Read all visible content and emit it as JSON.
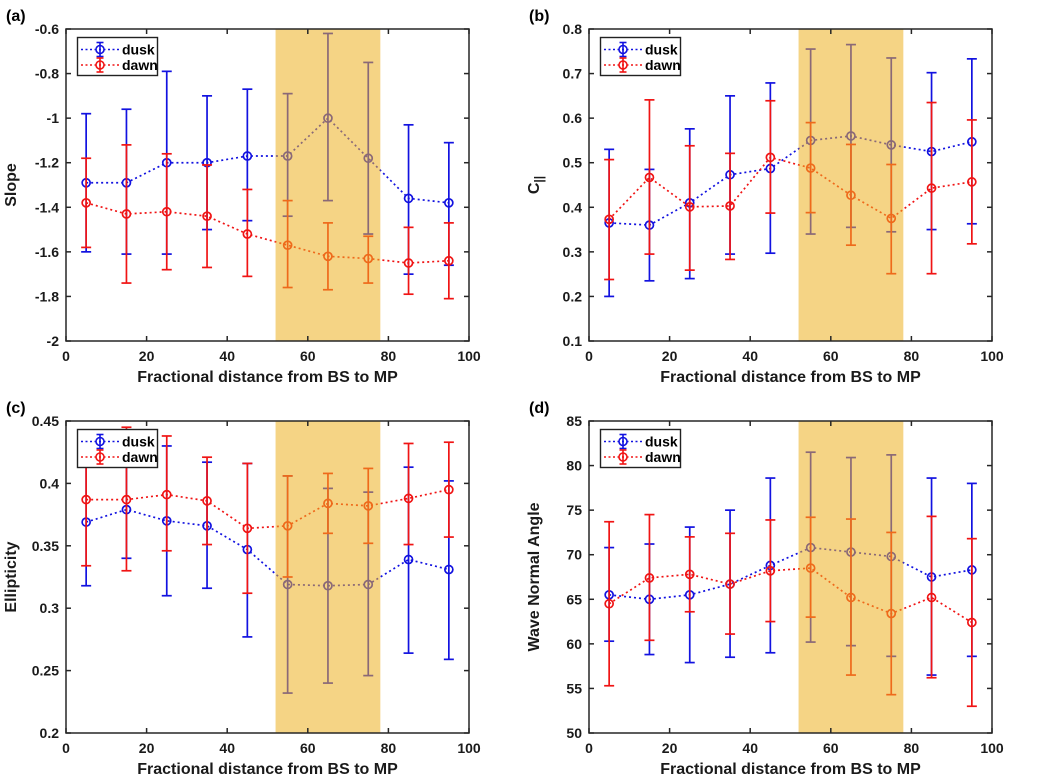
{
  "figure": {
    "background": "#ffffff",
    "xlabel": "Fractional distance from BS to MP",
    "legend_labels": [
      "dusk",
      "dawn"
    ],
    "colors": {
      "dusk": "#1212e0",
      "dawn": "#f01414",
      "band": "#edb120",
      "axis": "#262626",
      "text": "#1a1a1a",
      "legend_border": "#222222"
    }
  },
  "chart_data": [
    {
      "type": "line",
      "panel_label": "(a)",
      "ylabel": "Slope",
      "ylabel_sub": "",
      "xlabel": "Fractional distance from BS to MP",
      "xlim": [
        0,
        100
      ],
      "ylim": [
        -2,
        -0.6
      ],
      "xticks": [
        0,
        20,
        40,
        60,
        80,
        100
      ],
      "xtick_labels": [
        "0",
        "20",
        "40",
        "60",
        "80",
        "100"
      ],
      "yticks": [
        -2,
        -1.8,
        -1.6,
        -1.4,
        -1.2,
        -1,
        -0.8,
        -0.6
      ],
      "ytick_labels": [
        "-2",
        "-1.8",
        "-1.6",
        "-1.4",
        "-1.2",
        "-1",
        "-0.8",
        "-0.6"
      ],
      "x": [
        5,
        15,
        25,
        35,
        45,
        55,
        65,
        75,
        85,
        95
      ],
      "grid": false,
      "legend_position": "top-left",
      "shaded_region": {
        "x0": 52,
        "x1": 78,
        "color": "#edb120",
        "alpha": 0.55
      },
      "series": [
        {
          "name": "dusk",
          "color": "#1212e0",
          "values": [
            -1.29,
            -1.29,
            -1.2,
            -1.2,
            -1.17,
            -1.17,
            -1.0,
            -1.18,
            -1.36,
            -1.38
          ],
          "err_lo": [
            -1.6,
            -1.61,
            -1.61,
            -1.5,
            -1.46,
            -1.44,
            -1.37,
            -1.52,
            -1.7,
            -1.66
          ],
          "err_hi": [
            -0.98,
            -0.96,
            -0.79,
            -0.9,
            -0.87,
            -0.89,
            -0.62,
            -0.75,
            -1.03,
            -1.11
          ]
        },
        {
          "name": "dawn",
          "color": "#f01414",
          "values": [
            -1.38,
            -1.43,
            -1.42,
            -1.44,
            -1.52,
            -1.57,
            -1.62,
            -1.63,
            -1.65,
            -1.64
          ],
          "err_lo": [
            -1.58,
            -1.74,
            -1.68,
            -1.67,
            -1.71,
            -1.76,
            -1.77,
            -1.74,
            -1.79,
            -1.81
          ],
          "err_hi": [
            -1.18,
            -1.12,
            -1.16,
            -1.21,
            -1.32,
            -1.37,
            -1.47,
            -1.53,
            -1.49,
            -1.47
          ]
        }
      ]
    },
    {
      "type": "line",
      "panel_label": "(b)",
      "ylabel": "C",
      "ylabel_sub": "||",
      "xlabel": "Fractional distance from BS to MP",
      "xlim": [
        0,
        100
      ],
      "ylim": [
        0.1,
        0.8
      ],
      "xticks": [
        0,
        20,
        40,
        60,
        80,
        100
      ],
      "xtick_labels": [
        "0",
        "20",
        "40",
        "60",
        "80",
        "100"
      ],
      "yticks": [
        0.1,
        0.2,
        0.3,
        0.4,
        0.5,
        0.6,
        0.7,
        0.8
      ],
      "ytick_labels": [
        "0.1",
        "0.2",
        "0.3",
        "0.4",
        "0.5",
        "0.6",
        "0.7",
        "0.8"
      ],
      "x": [
        5,
        15,
        25,
        35,
        45,
        55,
        65,
        75,
        85,
        95
      ],
      "grid": false,
      "legend_position": "top-left",
      "shaded_region": {
        "x0": 52,
        "x1": 78,
        "color": "#edb120",
        "alpha": 0.55
      },
      "series": [
        {
          "name": "dusk",
          "color": "#1212e0",
          "values": [
            0.365,
            0.36,
            0.41,
            0.473,
            0.487,
            0.55,
            0.56,
            0.54,
            0.525,
            0.547
          ],
          "err_lo": [
            0.2,
            0.235,
            0.24,
            0.295,
            0.297,
            0.34,
            0.355,
            0.345,
            0.35,
            0.363
          ],
          "err_hi": [
            0.53,
            0.485,
            0.576,
            0.65,
            0.679,
            0.755,
            0.765,
            0.735,
            0.702,
            0.733
          ]
        },
        {
          "name": "dawn",
          "color": "#f01414",
          "values": [
            0.373,
            0.467,
            0.401,
            0.403,
            0.512,
            0.488,
            0.427,
            0.375,
            0.443,
            0.457
          ],
          "err_lo": [
            0.238,
            0.295,
            0.259,
            0.283,
            0.387,
            0.388,
            0.315,
            0.251,
            0.251,
            0.318
          ],
          "err_hi": [
            0.507,
            0.641,
            0.538,
            0.521,
            0.639,
            0.59,
            0.541,
            0.496,
            0.635,
            0.596
          ]
        }
      ]
    },
    {
      "type": "line",
      "panel_label": "(c)",
      "ylabel": "Ellipticity",
      "ylabel_sub": "",
      "xlabel": "Fractional distance from BS to MP",
      "xlim": [
        0,
        100
      ],
      "ylim": [
        0.2,
        0.45
      ],
      "xticks": [
        0,
        20,
        40,
        60,
        80,
        100
      ],
      "xtick_labels": [
        "0",
        "20",
        "40",
        "60",
        "80",
        "100"
      ],
      "yticks": [
        0.2,
        0.25,
        0.3,
        0.35,
        0.4,
        0.45
      ],
      "ytick_labels": [
        "0.2",
        "0.25",
        "0.3",
        "0.35",
        "0.4",
        "0.45"
      ],
      "x": [
        5,
        15,
        25,
        35,
        45,
        55,
        65,
        75,
        85,
        95
      ],
      "grid": false,
      "legend_position": "top-left",
      "shaded_region": {
        "x0": 52,
        "x1": 78,
        "color": "#edb120",
        "alpha": 0.55
      },
      "series": [
        {
          "name": "dusk",
          "color": "#1212e0",
          "values": [
            0.369,
            0.379,
            0.37,
            0.366,
            0.347,
            0.319,
            0.318,
            0.319,
            0.339,
            0.331
          ],
          "err_lo": [
            0.318,
            0.34,
            0.31,
            0.316,
            0.277,
            0.232,
            0.24,
            0.246,
            0.264,
            0.259
          ],
          "err_hi": [
            0.42,
            0.418,
            0.43,
            0.417,
            0.416,
            0.406,
            0.396,
            0.393,
            0.413,
            0.402
          ]
        },
        {
          "name": "dawn",
          "color": "#f01414",
          "values": [
            0.387,
            0.387,
            0.391,
            0.386,
            0.364,
            0.366,
            0.384,
            0.382,
            0.388,
            0.395
          ],
          "err_lo": [
            0.334,
            0.33,
            0.346,
            0.351,
            0.312,
            0.325,
            0.36,
            0.352,
            0.351,
            0.357
          ],
          "err_hi": [
            0.44,
            0.445,
            0.438,
            0.421,
            0.416,
            0.406,
            0.408,
            0.412,
            0.432,
            0.433
          ]
        }
      ]
    },
    {
      "type": "line",
      "panel_label": "(d)",
      "ylabel": "Wave Normal Angle",
      "ylabel_sub": "",
      "xlabel": "Fractional distance from BS to MP",
      "xlim": [
        0,
        100
      ],
      "ylim": [
        50,
        85
      ],
      "xticks": [
        0,
        20,
        40,
        60,
        80,
        100
      ],
      "xtick_labels": [
        "0",
        "20",
        "40",
        "60",
        "80",
        "100"
      ],
      "yticks": [
        50,
        55,
        60,
        65,
        70,
        75,
        80,
        85
      ],
      "ytick_labels": [
        "50",
        "55",
        "60",
        "65",
        "70",
        "75",
        "80",
        "85"
      ],
      "x": [
        5,
        15,
        25,
        35,
        45,
        55,
        65,
        75,
        85,
        95
      ],
      "grid": false,
      "legend_position": "top-left",
      "shaded_region": {
        "x0": 52,
        "x1": 78,
        "color": "#edb120",
        "alpha": 0.55
      },
      "series": [
        {
          "name": "dusk",
          "color": "#1212e0",
          "values": [
            65.5,
            65.0,
            65.5,
            66.7,
            68.8,
            70.8,
            70.3,
            69.8,
            67.5,
            68.3
          ],
          "err_lo": [
            60.3,
            58.8,
            57.9,
            58.5,
            59.0,
            60.2,
            59.8,
            58.6,
            56.5,
            58.6
          ],
          "err_hi": [
            70.8,
            71.2,
            73.1,
            75.0,
            78.6,
            81.5,
            80.9,
            81.2,
            78.6,
            78.0
          ]
        },
        {
          "name": "dawn",
          "color": "#f01414",
          "values": [
            64.5,
            67.4,
            67.8,
            66.7,
            68.2,
            68.5,
            65.2,
            63.4,
            65.2,
            62.4
          ],
          "err_lo": [
            55.3,
            60.4,
            63.6,
            61.1,
            62.5,
            63.0,
            56.5,
            54.3,
            56.2,
            53.0
          ],
          "err_hi": [
            73.7,
            74.5,
            72.0,
            72.4,
            73.9,
            74.2,
            74.0,
            72.5,
            74.3,
            71.8
          ]
        }
      ]
    }
  ]
}
